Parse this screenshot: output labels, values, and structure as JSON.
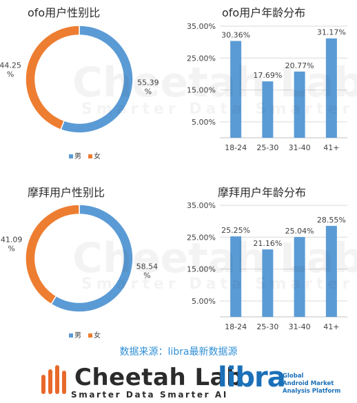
{
  "chart_data": [
    {
      "type": "pie",
      "style": "donut",
      "title": "ofo用户性别比",
      "categories": [
        "男",
        "女"
      ],
      "values": [
        55.39,
        44.25
      ],
      "labels": [
        "55.39\n%",
        "44.25\n%"
      ],
      "legend": "bottom",
      "colors": [
        "#5b9bd5",
        "#ed7d31"
      ]
    },
    {
      "type": "bar",
      "title": "ofo用户年龄分布",
      "categories": [
        "18-24",
        "25-30",
        "31-40",
        "41+"
      ],
      "values": [
        30.36,
        17.69,
        20.77,
        31.17
      ],
      "value_labels": [
        "30.36%",
        "17.69%",
        "20.77%",
        "31.17%"
      ],
      "y_ticks": [
        "35.00%",
        "25.00%",
        "15.00%",
        "5.00%"
      ],
      "ylim": [
        0,
        35
      ],
      "grid": true,
      "color": "#5b9bd5"
    },
    {
      "type": "pie",
      "style": "donut",
      "title": "摩拜用户性别比",
      "categories": [
        "男",
        "女"
      ],
      "values": [
        58.54,
        41.09
      ],
      "labels": [
        "58.54\n%",
        "41.09\n%"
      ],
      "legend": "bottom",
      "colors": [
        "#5b9bd5",
        "#ed7d31"
      ]
    },
    {
      "type": "bar",
      "title": "摩拜用户年龄分布",
      "categories": [
        "18-24",
        "25-30",
        "31-40",
        "41+"
      ],
      "values": [
        25.25,
        21.16,
        25.04,
        28.55
      ],
      "value_labels": [
        "25.25%",
        "21.16%",
        "25.04%",
        "28.55%"
      ],
      "y_ticks": [
        "35.00%",
        "25.00%",
        "15.00%",
        "5.00%"
      ],
      "ylim": [
        0,
        35
      ],
      "grid": true,
      "color": "#5b9bd5"
    }
  ],
  "source": "数据来源：libra最新数据源",
  "watermark": {
    "name": "Cheetah Lab",
    "tagline": "Smarter Data Smarter AI"
  },
  "footer": {
    "brand": "Cheetah Lab",
    "tagline": "Smarter Data Smarter AI",
    "partner": "libra",
    "partner_tagline": "Global\nAndroid Market\nAnalysis Platform",
    "logo_color": "#e8692a",
    "partner_color": "#1b70b8"
  }
}
